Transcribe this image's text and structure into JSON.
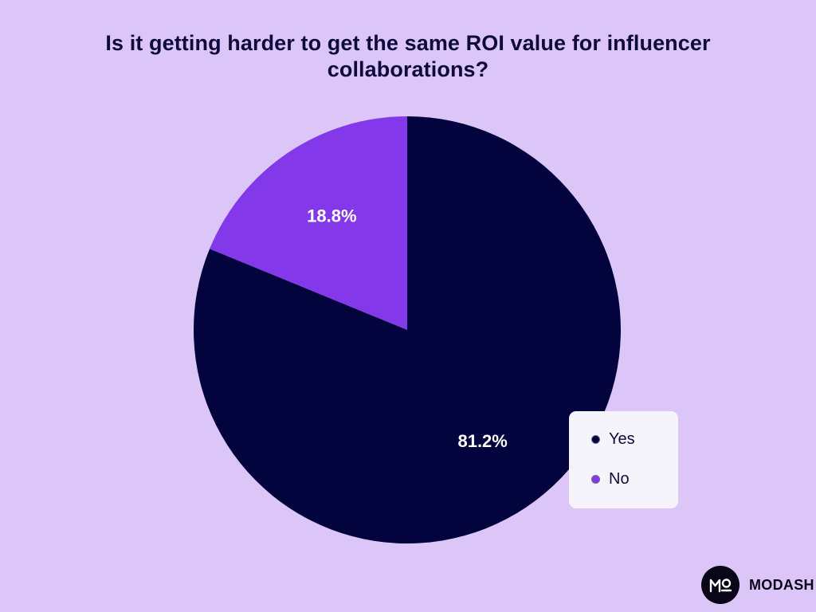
{
  "chart_data": {
    "type": "pie",
    "title": "Is it getting harder to get the same ROI value for influencer collaborations?",
    "categories": [
      "Yes",
      "No"
    ],
    "values": [
      81.2,
      18.8
    ],
    "data_labels": [
      "81.2%",
      "18.8%"
    ],
    "colors": [
      "#03033d",
      "#8338ea"
    ],
    "legend": {
      "placement": "bottom-right",
      "entries": [
        "Yes",
        "No"
      ]
    }
  },
  "branding": {
    "name": "MODASH",
    "logo_letters": "MO"
  }
}
